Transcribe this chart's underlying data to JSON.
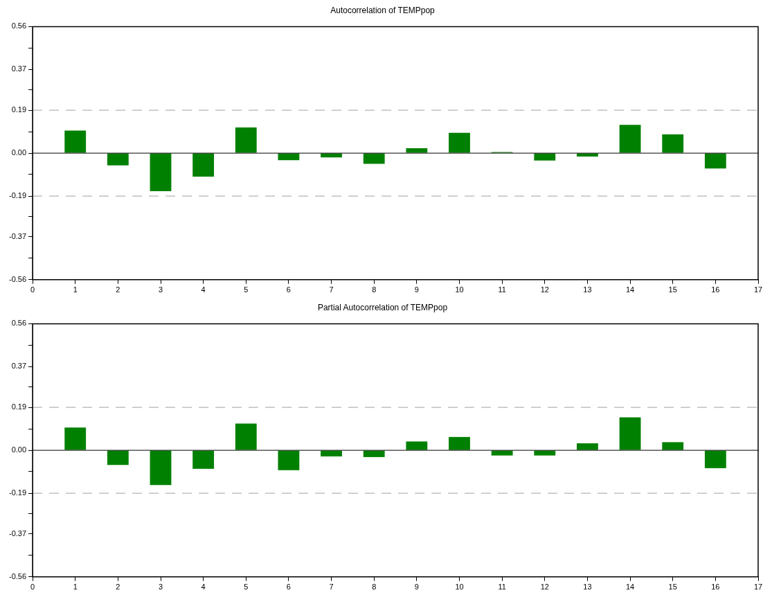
{
  "chart_data": [
    {
      "type": "bar",
      "title": "Autocorrelation of TEMPpop",
      "x": [
        1,
        2,
        3,
        4,
        5,
        6,
        7,
        8,
        9,
        10,
        11,
        12,
        13,
        14,
        15,
        16
      ],
      "values": [
        0.1,
        -0.054,
        -0.168,
        -0.104,
        0.114,
        -0.031,
        -0.019,
        -0.047,
        0.022,
        0.09,
        0.005,
        -0.033,
        -0.015,
        0.125,
        0.083,
        -0.068
      ],
      "color": "#008000",
      "xlim": [
        0,
        17
      ],
      "xticks": [
        0,
        1,
        2,
        3,
        4,
        5,
        6,
        7,
        8,
        9,
        10,
        11,
        12,
        13,
        14,
        15,
        16,
        17
      ],
      "ylim": [
        -0.56,
        0.56
      ],
      "yticks": [
        -0.56,
        {
          "value": -0.465,
          "label": null
        },
        -0.37,
        {
          "value": -0.28,
          "label": null
        },
        -0.19,
        {
          "value": -0.093,
          "label": null
        },
        {
          "value": 0,
          "label": "0.00"
        },
        {
          "value": 0.093,
          "label": null
        },
        0.19,
        {
          "value": 0.28,
          "label": null
        },
        0.37,
        {
          "value": 0.465,
          "label": null
        },
        0.56
      ],
      "ref_lines": [
        {
          "axis": "y",
          "value": 0.19,
          "color": "#a0a0a0",
          "line_style": "dashed"
        },
        {
          "axis": "y",
          "value": -0.19,
          "color": "#a0a0a0",
          "line_style": "dashed"
        }
      ],
      "grid": false,
      "legend": false
    },
    {
      "type": "bar",
      "title": "Partial Autocorrelation of TEMPpop",
      "x": [
        1,
        2,
        3,
        4,
        5,
        6,
        7,
        8,
        9,
        10,
        11,
        12,
        13,
        14,
        15,
        16
      ],
      "values": [
        0.101,
        -0.065,
        -0.154,
        -0.082,
        0.118,
        -0.088,
        -0.027,
        -0.03,
        0.039,
        0.059,
        -0.023,
        -0.023,
        0.031,
        0.146,
        0.036,
        -0.079
      ],
      "color": "#008000",
      "xlim": [
        0,
        17
      ],
      "xticks": [
        0,
        1,
        2,
        3,
        4,
        5,
        6,
        7,
        8,
        9,
        10,
        11,
        12,
        13,
        14,
        15,
        16,
        17
      ],
      "ylim": [
        -0.56,
        0.56
      ],
      "yticks": [
        -0.56,
        {
          "value": -0.465,
          "label": null
        },
        -0.37,
        {
          "value": -0.28,
          "label": null
        },
        -0.19,
        {
          "value": -0.093,
          "label": null
        },
        {
          "value": 0,
          "label": "0.00"
        },
        {
          "value": 0.093,
          "label": null
        },
        0.19,
        {
          "value": 0.28,
          "label": null
        },
        0.37,
        {
          "value": 0.465,
          "label": null
        },
        0.56
      ],
      "ref_lines": [
        {
          "axis": "y",
          "value": 0.19,
          "color": "#a0a0a0",
          "line_style": "dashed"
        },
        {
          "axis": "y",
          "value": -0.19,
          "color": "#a0a0a0",
          "line_style": "dashed"
        }
      ],
      "grid": false,
      "legend": false
    }
  ]
}
